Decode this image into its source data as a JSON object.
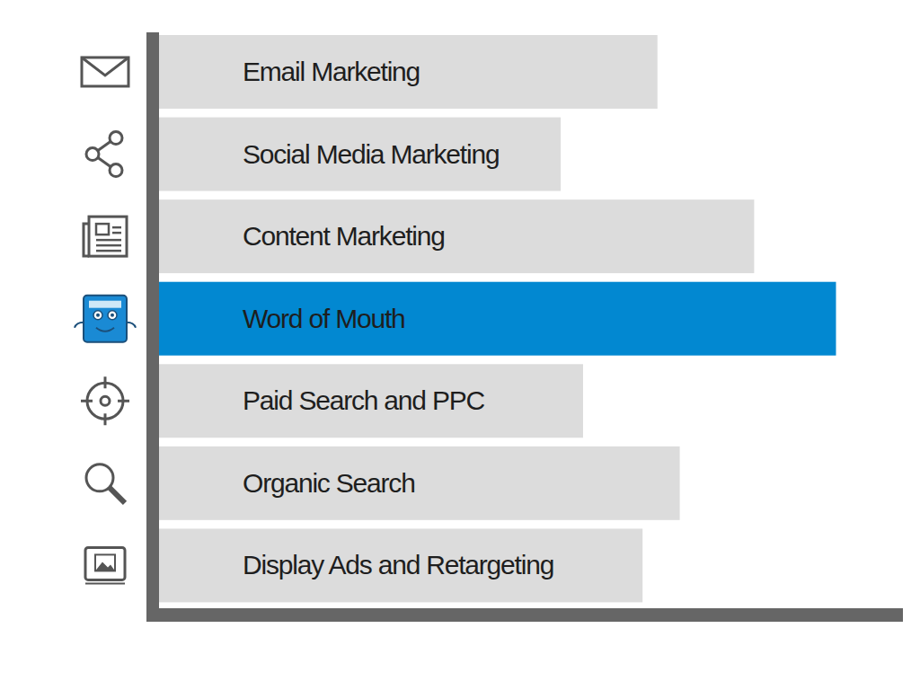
{
  "chart_data": {
    "type": "bar",
    "orientation": "horizontal",
    "categories": [
      "Email Marketing",
      "Social Media Marketing",
      "Content Marketing",
      "Word of Mouth",
      "Paid Search and PPC",
      "Organic Search",
      "Display Ads and Retargeting"
    ],
    "values": [
      67,
      54,
      80,
      91,
      57,
      70,
      65
    ],
    "colors": [
      "#dcdcdc",
      "#dcdcdc",
      "#dcdcdc",
      "#0288d1",
      "#dcdcdc",
      "#dcdcdc",
      "#dcdcdc"
    ],
    "xlim": [
      0,
      100
    ],
    "tick_labels": false,
    "grid": false
  }
}
